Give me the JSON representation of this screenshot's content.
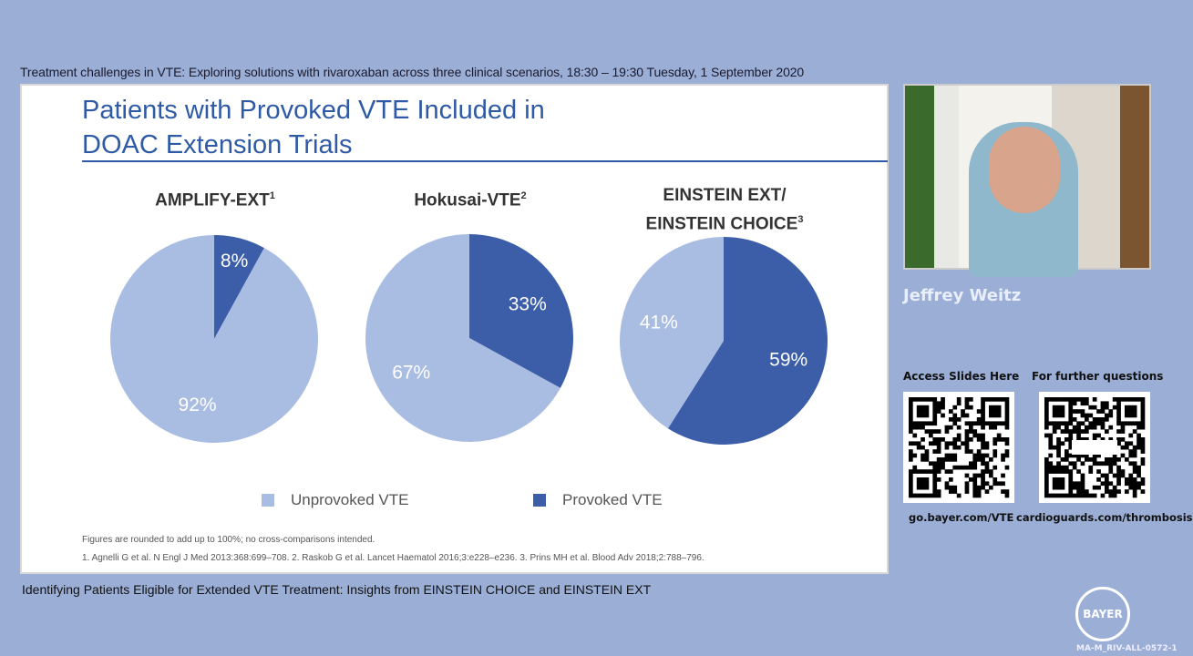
{
  "header": {
    "session": "Treatment challenges in VTE: Exploring solutions with rivaroxaban across three clinical scenarios, 18:30 – 19:30 Tuesday, 1 September 2020"
  },
  "slide": {
    "title_line1": "Patients with Provoked VTE Included in",
    "title_line2": "DOAC Extension Trials",
    "footnote": "Figures are rounded to add up to 100%; no cross-comparisons intended.",
    "references": "1. Agnelli G et al. N Engl J Med 2013:368:699–708. 2. Raskob G et al. Lancet Haematol 2016;3:e228–e236. 3. Prins MH et al. Blood Adv 2018;2:788–796."
  },
  "chart_data": {
    "type": "pie",
    "legend": [
      "Unprovoked VTE",
      "Provoked VTE"
    ],
    "legend_position": "bottom",
    "colors": {
      "Unprovoked VTE": "#a9bce2",
      "Provoked VTE": "#3c5ea8"
    },
    "pies": [
      {
        "title": "AMPLIFY-EXT",
        "sup": "1",
        "title2": "",
        "values": {
          "Unprovoked VTE": 92,
          "Provoked VTE": 8
        },
        "labels": [
          "92%",
          "8%"
        ]
      },
      {
        "title": "Hokusai-VTE",
        "sup": "2",
        "title2": "",
        "values": {
          "Unprovoked VTE": 67,
          "Provoked VTE": 33
        },
        "labels": [
          "67%",
          "33%"
        ]
      },
      {
        "title": "EINSTEIN EXT/",
        "sup": "3",
        "title2": "EINSTEIN CHOICE",
        "values": {
          "Unprovoked VTE": 41,
          "Provoked VTE": 59
        },
        "labels": [
          "41%",
          "59%"
        ]
      }
    ]
  },
  "footer": {
    "talk_title": "Identifying Patients Eligible for Extended VTE Treatment: Insights from EINSTEIN CHOICE and EINSTEIN EXT"
  },
  "sidebar": {
    "speaker": "Jeffrey Weitz",
    "qr1_label": "Access  Slides Here",
    "qr1_link": "go.bayer.com/VTE",
    "qr2_label": "For further questions",
    "qr2_link": "cardioguards.com/thrombosis",
    "logo_text": "BAYER",
    "code": "MA-M_RIV-ALL-0572-1"
  }
}
